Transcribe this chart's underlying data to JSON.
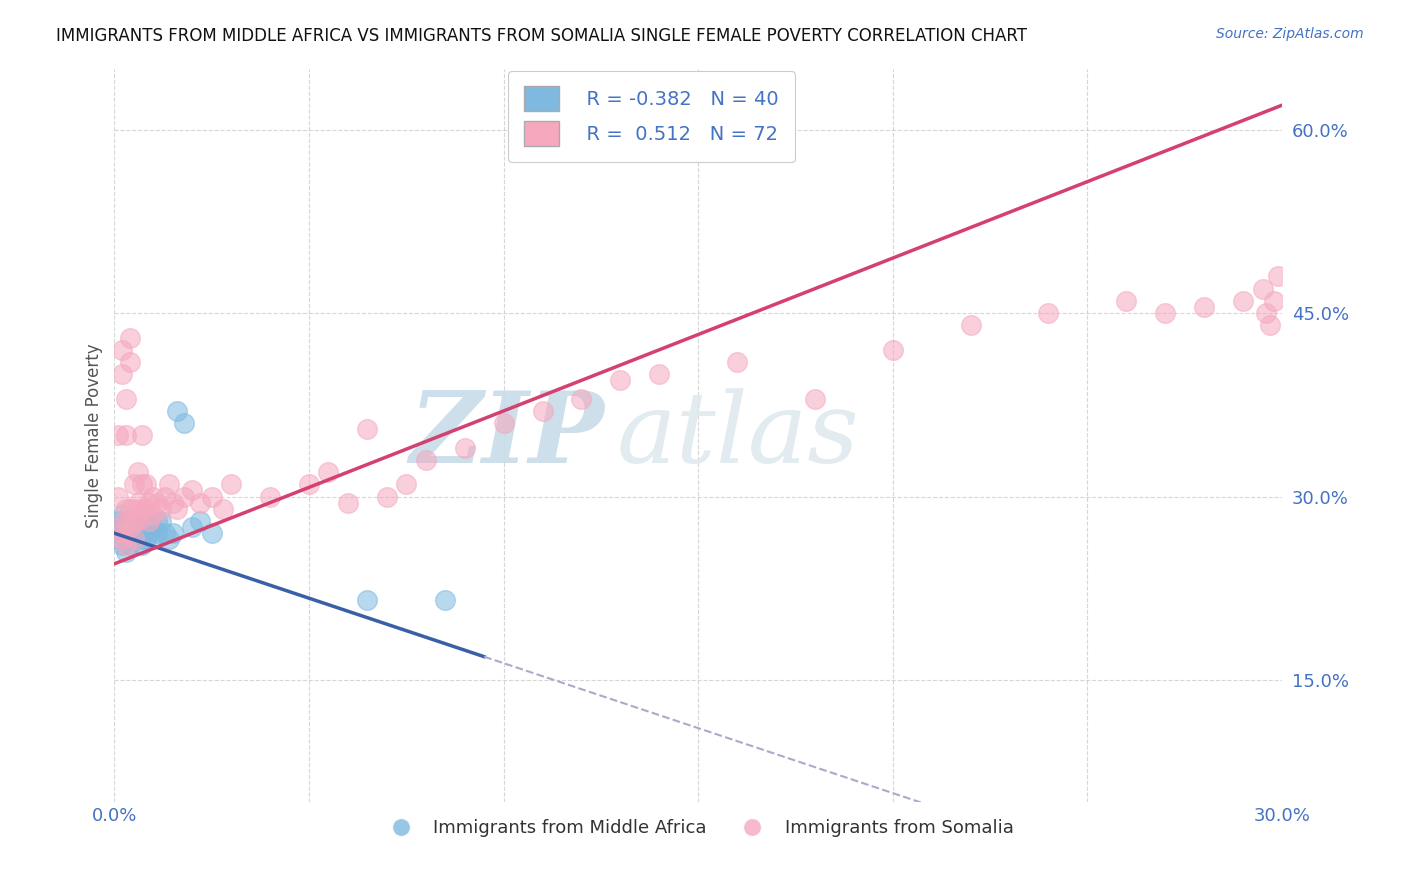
{
  "title": "IMMIGRANTS FROM MIDDLE AFRICA VS IMMIGRANTS FROM SOMALIA SINGLE FEMALE POVERTY CORRELATION CHART",
  "source": "Source: ZipAtlas.com",
  "ylabel": "Single Female Poverty",
  "xlim": [
    0.0,
    0.3
  ],
  "ylim": [
    0.05,
    0.65
  ],
  "xticks": [
    0.0,
    0.05,
    0.1,
    0.15,
    0.2,
    0.25,
    0.3
  ],
  "xticklabels": [
    "0.0%",
    "",
    "",
    "",
    "",
    "",
    "30.0%"
  ],
  "yticks": [
    0.15,
    0.3,
    0.45,
    0.6
  ],
  "yticklabels": [
    "15.0%",
    "30.0%",
    "45.0%",
    "60.0%"
  ],
  "legend_r1": "R = -0.382",
  "legend_n1": "N = 40",
  "legend_r2": "R =  0.512",
  "legend_n2": "N = 72",
  "color_blue": "#7fb9e0",
  "color_pink": "#f5a8be",
  "line_blue": "#3a5fa8",
  "line_pink": "#d44070",
  "watermark_zip": "ZIP",
  "watermark_atlas": "atlas",
  "blue_scatter_x": [
    0.001,
    0.001,
    0.001,
    0.002,
    0.002,
    0.002,
    0.003,
    0.003,
    0.003,
    0.003,
    0.004,
    0.004,
    0.004,
    0.005,
    0.005,
    0.005,
    0.006,
    0.006,
    0.007,
    0.007,
    0.007,
    0.008,
    0.008,
    0.009,
    0.009,
    0.01,
    0.01,
    0.011,
    0.011,
    0.012,
    0.013,
    0.014,
    0.015,
    0.016,
    0.018,
    0.02,
    0.022,
    0.025,
    0.065,
    0.085
  ],
  "blue_scatter_y": [
    0.27,
    0.265,
    0.28,
    0.26,
    0.275,
    0.285,
    0.27,
    0.265,
    0.28,
    0.255,
    0.27,
    0.28,
    0.26,
    0.275,
    0.265,
    0.27,
    0.28,
    0.275,
    0.265,
    0.275,
    0.26,
    0.285,
    0.265,
    0.28,
    0.27,
    0.275,
    0.265,
    0.28,
    0.27,
    0.28,
    0.27,
    0.265,
    0.27,
    0.37,
    0.36,
    0.275,
    0.28,
    0.27,
    0.215,
    0.215
  ],
  "pink_scatter_x": [
    0.001,
    0.001,
    0.001,
    0.002,
    0.002,
    0.002,
    0.002,
    0.003,
    0.003,
    0.003,
    0.003,
    0.003,
    0.004,
    0.004,
    0.004,
    0.004,
    0.005,
    0.005,
    0.005,
    0.005,
    0.006,
    0.006,
    0.006,
    0.007,
    0.007,
    0.007,
    0.008,
    0.008,
    0.009,
    0.009,
    0.01,
    0.01,
    0.011,
    0.012,
    0.013,
    0.014,
    0.015,
    0.016,
    0.018,
    0.02,
    0.022,
    0.025,
    0.028,
    0.03,
    0.04,
    0.05,
    0.055,
    0.06,
    0.065,
    0.07,
    0.075,
    0.08,
    0.09,
    0.1,
    0.11,
    0.12,
    0.13,
    0.14,
    0.16,
    0.18,
    0.2,
    0.22,
    0.24,
    0.26,
    0.27,
    0.28,
    0.29,
    0.295,
    0.296,
    0.297,
    0.298,
    0.299
  ],
  "pink_scatter_y": [
    0.275,
    0.3,
    0.35,
    0.265,
    0.4,
    0.42,
    0.27,
    0.28,
    0.35,
    0.38,
    0.29,
    0.26,
    0.29,
    0.41,
    0.43,
    0.275,
    0.28,
    0.31,
    0.29,
    0.265,
    0.32,
    0.295,
    0.28,
    0.29,
    0.31,
    0.35,
    0.31,
    0.29,
    0.295,
    0.28,
    0.3,
    0.285,
    0.295,
    0.29,
    0.3,
    0.31,
    0.295,
    0.29,
    0.3,
    0.305,
    0.295,
    0.3,
    0.29,
    0.31,
    0.3,
    0.31,
    0.32,
    0.295,
    0.355,
    0.3,
    0.31,
    0.33,
    0.34,
    0.36,
    0.37,
    0.38,
    0.395,
    0.4,
    0.41,
    0.38,
    0.42,
    0.44,
    0.45,
    0.46,
    0.45,
    0.455,
    0.46,
    0.47,
    0.45,
    0.44,
    0.46,
    0.48
  ]
}
